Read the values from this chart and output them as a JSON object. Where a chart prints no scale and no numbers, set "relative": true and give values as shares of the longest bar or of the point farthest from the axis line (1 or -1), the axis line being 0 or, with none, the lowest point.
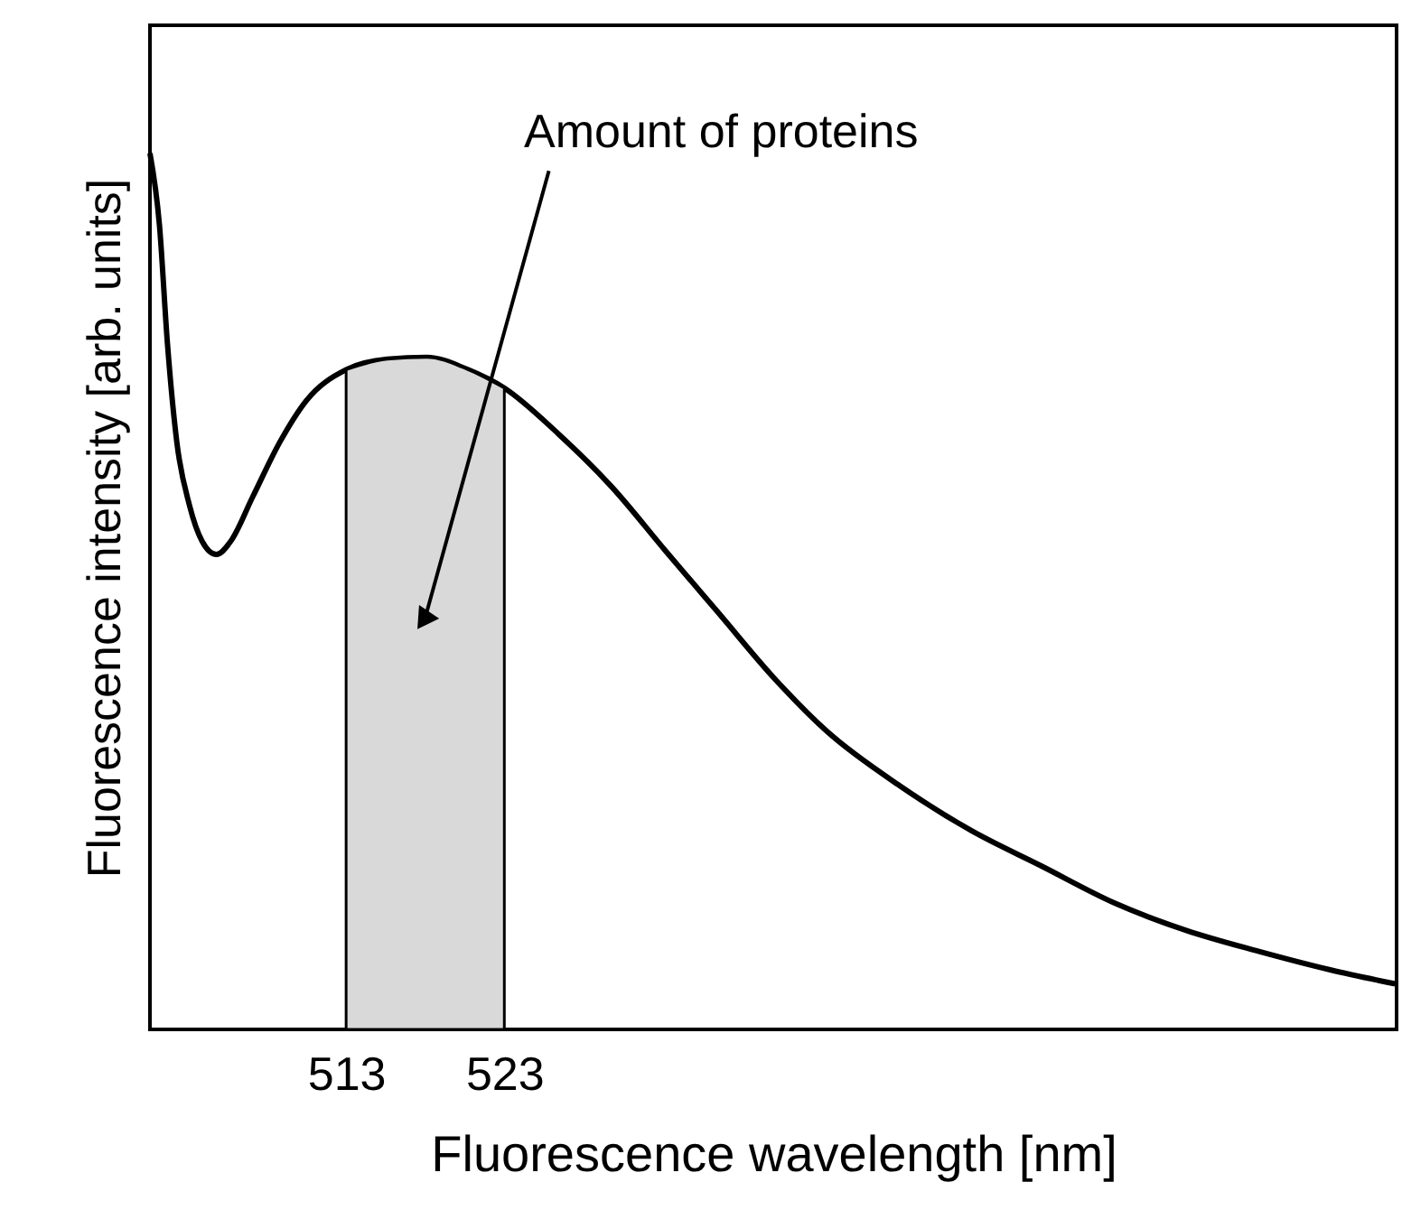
{
  "chart_data": {
    "type": "line",
    "relative": true,
    "xlabel": "Fluorescence wavelength [nm]",
    "ylabel": "Fluorescence intensity [arb. units]",
    "xlim": [
      500.6,
      579.4
    ],
    "xticks": [
      513,
      523
    ],
    "series": [
      {
        "color": "#000000",
        "x": [
          500.6,
          501.2,
          501.7,
          502.3,
          503.1,
          503.9,
          504.8,
          505.7,
          507.1,
          508.8,
          510.5,
          513,
          515.6,
          518.1,
          520.7,
          523,
          526.4,
          529.8,
          533.2,
          536.6,
          540.0,
          543.4,
          548.0,
          552.5,
          557.0,
          561.6,
          566.1,
          570.7,
          575.2,
          579.3
        ],
        "values": [
          1.0,
          0.918,
          0.784,
          0.67,
          0.598,
          0.557,
          0.542,
          0.557,
          0.608,
          0.67,
          0.718,
          0.753,
          0.765,
          0.767,
          0.753,
          0.732,
          0.68,
          0.619,
          0.546,
          0.474,
          0.402,
          0.34,
          0.278,
          0.227,
          0.186,
          0.144,
          0.113,
          0.089,
          0.068,
          0.052
        ]
      }
    ],
    "bands": [
      {
        "axis": "x",
        "from": 513,
        "to": 523,
        "color": "#d9d9d9"
      }
    ],
    "annotations": [
      {
        "text": "Amount of proteins",
        "x": 518,
        "y": 0.47
      }
    ],
    "grid": false,
    "marker": "none",
    "line_style": "solid"
  }
}
